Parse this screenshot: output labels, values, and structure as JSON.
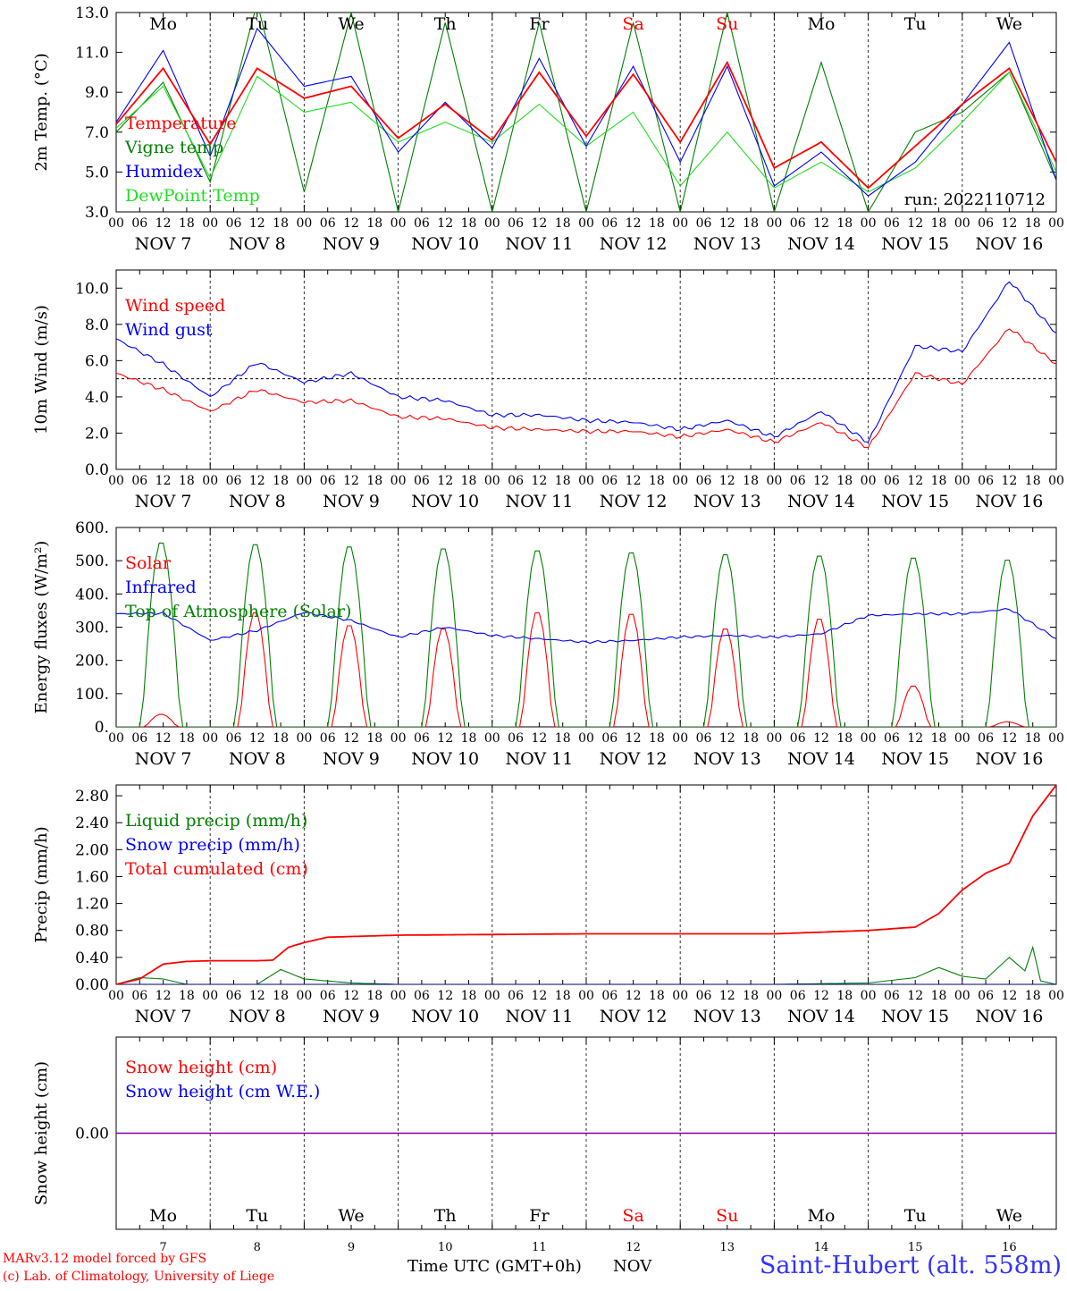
{
  "days": {
    "weekday_top": [
      "Mo",
      "Tu",
      "We",
      "Th",
      "Fr",
      "Sa",
      "Su",
      "Mo",
      "Tu",
      "We"
    ],
    "weekday_bottom": [
      "Mo",
      "Tu",
      "We",
      "Th",
      "Fr",
      "Sa",
      "Su",
      "Mo",
      "Tu",
      "We"
    ],
    "weekend_flags": [
      false,
      false,
      false,
      false,
      false,
      true,
      true,
      false,
      false,
      false
    ],
    "date_labels": [
      "NOV  7",
      "NOV  8",
      "NOV  9",
      "NOV 10",
      "NOV 11",
      "NOV 12",
      "NOV 13",
      "NOV 14",
      "NOV 15",
      "NOV 16"
    ],
    "day_numbers": [
      "7",
      "8",
      "9",
      "10",
      "11",
      "12",
      "13",
      "14",
      "15",
      "16"
    ],
    "hour_ticks": [
      "00",
      "06",
      "12",
      "18"
    ],
    "final_tick": "00"
  },
  "colors": {
    "red": "#ff0000",
    "green": "#008000",
    "blue": "#0000ff",
    "lightgreen": "#22dd22",
    "purple": "#8000a0",
    "title_blue": "#3333ff"
  },
  "footer": {
    "model_line1": "MARv3.12 model forced by GFS",
    "model_line2": "(c) Lab. of Climatology, University of Liege",
    "time_axis": "Time UTC (GMT+0h)",
    "month": "NOV",
    "station": "Saint-Hubert (alt. 558m)"
  },
  "chart_data": [
    {
      "id": "temperature",
      "type": "line",
      "ylabel": "2m Temp. (°C)",
      "ylim": [
        3,
        13
      ],
      "yticks": [
        "3.0",
        "5.0",
        "7.0",
        "9.0",
        "11.0",
        "13.0"
      ],
      "annotation": "run: 2022110712",
      "x_unit": "hours since Nov 7 00 UTC",
      "series": [
        {
          "name": "Temperature",
          "color": "#ff0000",
          "x": [
            0,
            12,
            24,
            36,
            48,
            60,
            72,
            84,
            96,
            108,
            120,
            132,
            144,
            156,
            168,
            180,
            192,
            204,
            216,
            228,
            240
          ],
          "values": [
            7.4,
            10.2,
            6.4,
            10.2,
            8.7,
            9.3,
            6.7,
            8.4,
            6.6,
            10.0,
            6.8,
            9.9,
            6.5,
            10.5,
            5.2,
            6.5,
            4.2,
            6.3,
            8.4,
            10.2,
            5.5
          ]
        },
        {
          "name": "Vigne temp",
          "color": "#008000",
          "x": [
            0,
            12,
            24,
            36,
            48,
            60,
            72,
            84,
            96,
            108,
            120,
            132,
            144,
            156,
            168,
            180,
            192,
            204,
            216,
            228,
            240
          ],
          "values": [
            7.0,
            9.5,
            4.5,
            13.5,
            4.0,
            13.0,
            3.0,
            12.5,
            3.0,
            12.5,
            3.0,
            12.5,
            3.0,
            13.0,
            3.0,
            10.5,
            3.0,
            7.0,
            8.0,
            10.0,
            4.6
          ]
        },
        {
          "name": "Humidex",
          "color": "#0000ff",
          "x": [
            0,
            12,
            24,
            36,
            48,
            60,
            72,
            84,
            96,
            108,
            120,
            132,
            144,
            156,
            168,
            180,
            192,
            204,
            216,
            228,
            240
          ],
          "values": [
            7.5,
            11.1,
            5.8,
            12.2,
            9.3,
            9.8,
            6.0,
            8.5,
            6.2,
            10.7,
            6.3,
            10.3,
            5.5,
            10.3,
            4.3,
            6.0,
            3.8,
            5.5,
            8.4,
            11.5,
            4.6
          ]
        },
        {
          "name": "DewPoint Temp",
          "color": "#22dd22",
          "x": [
            0,
            12,
            24,
            36,
            48,
            60,
            72,
            84,
            96,
            108,
            120,
            132,
            144,
            156,
            168,
            180,
            192,
            204,
            216,
            228,
            240
          ],
          "values": [
            7.2,
            9.3,
            4.7,
            9.8,
            8.0,
            8.5,
            6.5,
            7.5,
            6.5,
            8.4,
            6.3,
            8.0,
            4.3,
            7.0,
            4.2,
            5.5,
            4.0,
            5.2,
            7.5,
            10.0,
            5.0
          ]
        }
      ]
    },
    {
      "id": "wind",
      "type": "line",
      "ylabel": "10m Wind (m/s)",
      "ylim": [
        0,
        11
      ],
      "yticks": [
        "0.0",
        "2.0",
        "4.0",
        "6.0",
        "8.0",
        "10.0"
      ],
      "reference_line": 5.0,
      "series": [
        {
          "name": "Wind speed",
          "color": "#ff0000",
          "x": [
            0,
            12,
            24,
            36,
            48,
            60,
            72,
            84,
            96,
            108,
            120,
            132,
            144,
            156,
            168,
            180,
            192,
            204,
            216,
            228,
            240
          ],
          "values": [
            5.3,
            4.4,
            3.2,
            4.4,
            3.7,
            3.8,
            2.9,
            2.8,
            2.3,
            2.2,
            2.1,
            2.1,
            1.8,
            2.2,
            1.5,
            2.6,
            1.2,
            5.3,
            4.7,
            7.8,
            5.8
          ]
        },
        {
          "name": "Wind gust",
          "color": "#0000ff",
          "x": [
            0,
            12,
            24,
            36,
            48,
            60,
            72,
            84,
            96,
            108,
            120,
            132,
            144,
            156,
            168,
            180,
            192,
            204,
            216,
            228,
            240
          ],
          "values": [
            7.2,
            5.8,
            4.0,
            5.9,
            4.8,
            5.3,
            4.0,
            3.8,
            3.0,
            3.0,
            2.7,
            2.6,
            2.2,
            2.7,
            1.8,
            3.2,
            1.5,
            6.8,
            6.5,
            10.4,
            7.5
          ]
        }
      ]
    },
    {
      "id": "energy",
      "type": "line",
      "ylabel": "Energy fluxes (W/m²)",
      "ylim": [
        0,
        600
      ],
      "yticks": [
        "0.",
        "100.",
        "200.",
        "300.",
        "400.",
        "500.",
        "600."
      ],
      "series": [
        {
          "name": "Solar",
          "color": "#ff0000",
          "daily_peak": [
            38,
            350,
            310,
            300,
            350,
            345,
            300,
            330,
            125,
            15
          ]
        },
        {
          "name": "Infrared",
          "color": "#0000ff",
          "x": [
            0,
            12,
            24,
            36,
            48,
            60,
            72,
            84,
            96,
            108,
            120,
            132,
            144,
            156,
            168,
            180,
            192,
            204,
            216,
            228,
            240
          ],
          "values": [
            340,
            342,
            260,
            290,
            345,
            320,
            270,
            300,
            275,
            265,
            255,
            260,
            270,
            275,
            270,
            280,
            335,
            340,
            340,
            355,
            265
          ]
        },
        {
          "name": "Top of Atmosphere (Solar)",
          "color": "#008000",
          "daily_peak": [
            560,
            555,
            548,
            542,
            536,
            530,
            524,
            520,
            514,
            508
          ]
        }
      ]
    },
    {
      "id": "precip",
      "type": "line",
      "ylabel": "Precip (mm/h)",
      "ylim": [
        0,
        2.96
      ],
      "yticks": [
        "0.00",
        "0.40",
        "0.80",
        "1.20",
        "1.60",
        "2.00",
        "2.40",
        "2.80"
      ],
      "series": [
        {
          "name": "Liquid precip (mm/h)",
          "color": "#008000",
          "x": [
            0,
            6,
            12,
            18,
            30,
            36,
            42,
            48,
            54,
            60,
            72,
            168,
            192,
            204,
            210,
            216,
            222,
            228,
            232,
            234,
            236,
            240
          ],
          "values": [
            0,
            0.1,
            0.08,
            0,
            0,
            0,
            0.22,
            0.08,
            0.05,
            0.02,
            0,
            0,
            0.02,
            0.1,
            0.25,
            0.12,
            0.08,
            0.4,
            0.2,
            0.55,
            0.05,
            0
          ]
        },
        {
          "name": "Snow precip (mm/h)",
          "color": "#0000ff",
          "x": [
            0,
            240
          ],
          "values": [
            0,
            0
          ]
        },
        {
          "name": "Total cumulated (cm)",
          "color": "#ff0000",
          "x": [
            0,
            6,
            12,
            18,
            24,
            30,
            36,
            40,
            44,
            48,
            54,
            60,
            72,
            96,
            120,
            144,
            168,
            192,
            204,
            210,
            216,
            222,
            228,
            234,
            240
          ],
          "values": [
            0,
            0.08,
            0.3,
            0.34,
            0.35,
            0.35,
            0.35,
            0.36,
            0.55,
            0.62,
            0.7,
            0.71,
            0.73,
            0.74,
            0.75,
            0.75,
            0.75,
            0.8,
            0.85,
            1.05,
            1.4,
            1.65,
            1.8,
            2.5,
            2.96
          ]
        }
      ]
    },
    {
      "id": "snow",
      "type": "line",
      "ylabel": "Snow height (cm)",
      "ylim": [
        -1,
        1
      ],
      "yticks": [
        "0.00"
      ],
      "series": [
        {
          "name": "Snow height (cm)",
          "color": "#ff0000",
          "x": [
            0,
            240
          ],
          "values": [
            0,
            0
          ]
        },
        {
          "name": "Snow height (cm W.E.)",
          "color": "#0000ff",
          "x": [
            0,
            240
          ],
          "values": [
            0,
            0
          ]
        }
      ]
    }
  ]
}
